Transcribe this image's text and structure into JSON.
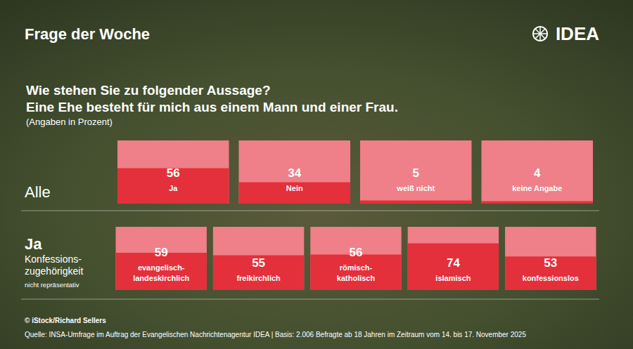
{
  "header": {
    "title": "Frage der Woche",
    "logo": "IDEA"
  },
  "question": [
    "Wie stehen Sie zu folgender Aussage?",
    "Eine Ehe besteht für mich aus einem Mann und einer Frau."
  ],
  "unit_note": "(Angaben in Prozent)",
  "chart_data": [
    {
      "type": "bar",
      "title": "Alle",
      "categories": [
        "Ja",
        "Nein",
        "weiß nicht",
        "keine Angabe"
      ],
      "values": [
        56,
        34,
        5,
        4
      ],
      "color": "#e3303b",
      "ylim": [
        0,
        100
      ],
      "grid": false,
      "tick_labels": false,
      "data_labels": true
    },
    {
      "type": "bar",
      "title": "Ja",
      "subtitle": "Konfessions-zugehörigkeit",
      "note": "nicht repräsentativ",
      "categories": [
        "evangelisch-landeskirchlich",
        "freikirchlich",
        "römisch-katholisch",
        "islamisch",
        "konfessionslos"
      ],
      "values": [
        59,
        55,
        56,
        74,
        53
      ],
      "color": "#e3303b",
      "ylim": [
        0,
        100
      ],
      "grid": false,
      "tick_labels": false,
      "data_labels": true
    }
  ],
  "credit": "© iStock/Richard Sellers",
  "source": "Quelle: INSA-Umfrage im Auftrag der Evangelischen Nachrichtenagentur IDEA | Basis: 2.006 Befragte ab 18 Jahren im Zeitraum vom 14. bis 17. November 2025"
}
